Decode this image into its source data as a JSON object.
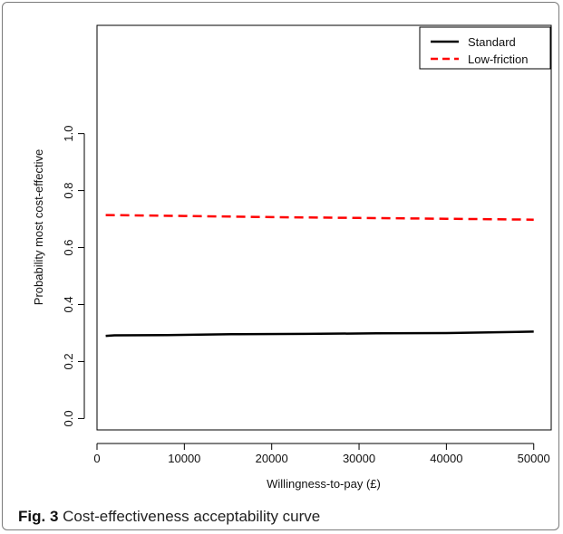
{
  "figure": {
    "caption_label": "Fig. 3",
    "caption_text": "Cost-effectiveness acceptability curve"
  },
  "chart_data": {
    "type": "line",
    "title": "",
    "xlabel": "Willingness-to-pay (£)",
    "ylabel": "Probability most cost-effective",
    "xlim": [
      0,
      52000
    ],
    "ylim": [
      -0.04,
      1.38
    ],
    "x_ticks": [
      0,
      10000,
      20000,
      30000,
      40000,
      50000
    ],
    "y_ticks": [
      0.0,
      0.2,
      0.4,
      0.6,
      0.8,
      1.0
    ],
    "x_tick_labels": [
      "0",
      "10000",
      "20000",
      "30000",
      "40000",
      "50000"
    ],
    "y_tick_labels": [
      "0.0",
      "0.2",
      "0.4",
      "0.6",
      "0.8",
      "1.0"
    ],
    "grid": false,
    "legend_position": "top-right",
    "series": [
      {
        "name": "Standard",
        "color": "#000000",
        "dash": "solid",
        "x": [
          1000,
          2000,
          8000,
          16000,
          24000,
          32000,
          40000,
          48000,
          50000
        ],
        "y": [
          0.29,
          0.292,
          0.293,
          0.296,
          0.297,
          0.299,
          0.3,
          0.304,
          0.305
        ]
      },
      {
        "name": "Low-friction",
        "color": "#ff0000",
        "dash": "dashed",
        "x": [
          1000,
          10000,
          20000,
          30000,
          40000,
          50000
        ],
        "y": [
          0.714,
          0.711,
          0.707,
          0.704,
          0.701,
          0.698
        ]
      }
    ]
  }
}
